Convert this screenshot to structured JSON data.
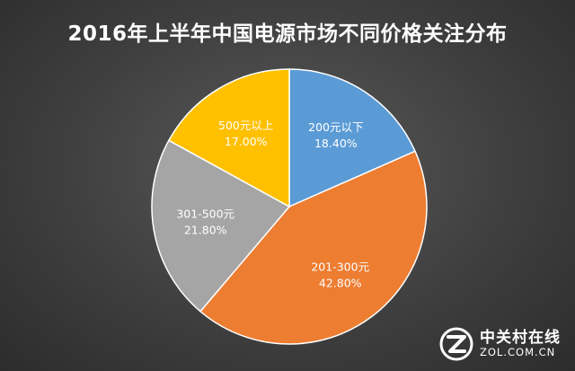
{
  "chart_data": {
    "type": "pie",
    "title": "2016年上半年中国电源市场不同价格关注分布",
    "start_angle_deg": 0,
    "direction": "clockwise",
    "slices": [
      {
        "label": "200元以下",
        "value": 18.4,
        "value_text": "18.40%",
        "color": "#5b9bd5",
        "text_color": "#ffffff"
      },
      {
        "label": "201-300元",
        "value": 42.8,
        "value_text": "42.80%",
        "color": "#ed7d31",
        "text_color": "#ffffff"
      },
      {
        "label": "301-500元",
        "value": 21.8,
        "value_text": "21.80%",
        "color": "#a5a5a5",
        "text_color": "#ffffff"
      },
      {
        "label": "500元以上",
        "value": 17.0,
        "value_text": "17.00%",
        "color": "#ffc000",
        "text_color": "#ffffff"
      }
    ],
    "legend": "none",
    "background_color": "#3f3f3f",
    "slice_border_color": "#ffffff"
  },
  "watermark": {
    "name": "中关村在线",
    "site": "ZOL.COM.CN",
    "logo_icon": "zol-logo-icon"
  }
}
